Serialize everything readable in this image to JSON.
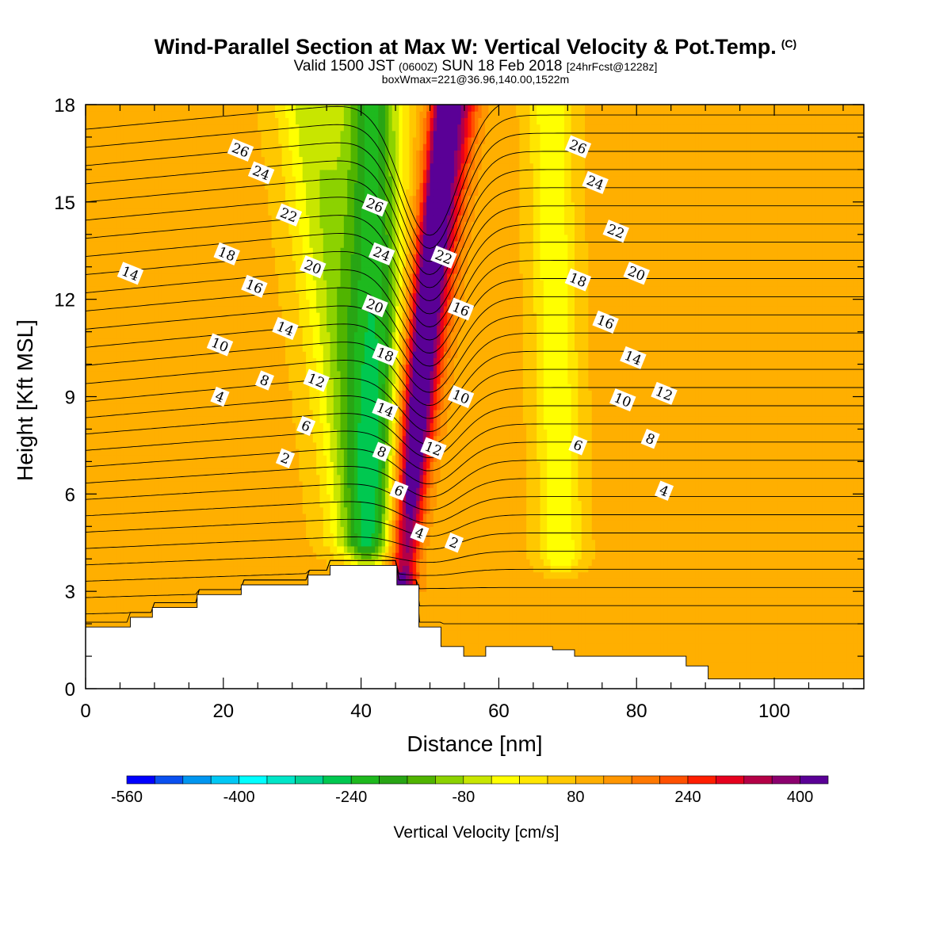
{
  "header": {
    "title": "Wind-Parallel Section at Max W: Vertical Velocity & Pot.Temp.",
    "title_mark": "(C)",
    "valid_prefix": "Valid 1500 JST",
    "valid_utc": "(0600Z)",
    "valid_date": "SUN 18 Feb 2018",
    "forecast": "[24hrFcst@1228z]",
    "boxinfo": "boxWmax=221@36.96,140.00,1522m"
  },
  "chart_data": {
    "type": "contour",
    "xlabel": "Distance [nm]",
    "ylabel": "Height [Kft MSL]",
    "xlim": [
      0,
      113
    ],
    "ylim": [
      0,
      18
    ],
    "x_ticks": [
      0,
      20,
      40,
      60,
      80,
      100
    ],
    "y_ticks": [
      0,
      3,
      6,
      9,
      12,
      15,
      18
    ],
    "colorbar": {
      "title": "Vertical Velocity [cm/s]",
      "min": -560,
      "max": 440,
      "step": 40,
      "tick_values": [
        -560,
        -400,
        -240,
        -80,
        80,
        240,
        400
      ],
      "tick_labels": [
        "-560",
        "-400",
        "-240",
        "-80",
        "80",
        "240",
        "400"
      ],
      "colors": [
        "#0000ff",
        "#0a50f0",
        "#0096f0",
        "#00c8f5",
        "#00ffff",
        "#00e6c8",
        "#00d296",
        "#00c850",
        "#1eb91e",
        "#28a514",
        "#50b400",
        "#8cd200",
        "#c8e600",
        "#ffff00",
        "#ffe600",
        "#ffc800",
        "#ffaf00",
        "#ff9600",
        "#ff7800",
        "#ff5000",
        "#ff1e00",
        "#e6001e",
        "#b40046",
        "#8c006e",
        "#5a0096"
      ]
    },
    "terrain": [
      [
        0,
        1.9
      ],
      [
        6.5,
        1.9
      ],
      [
        6.5,
        2.2
      ],
      [
        9.7,
        2.2
      ],
      [
        9.7,
        2.5
      ],
      [
        16.2,
        2.5
      ],
      [
        16.2,
        2.9
      ],
      [
        22.6,
        2.9
      ],
      [
        22.6,
        3.2
      ],
      [
        32.3,
        3.2
      ],
      [
        32.3,
        3.5
      ],
      [
        35.5,
        3.5
      ],
      [
        35.5,
        3.8
      ],
      [
        45.2,
        3.8
      ],
      [
        45.2,
        3.2
      ],
      [
        48.4,
        3.2
      ],
      [
        48.4,
        1.9
      ],
      [
        51.6,
        1.9
      ],
      [
        51.6,
        1.3
      ],
      [
        54.9,
        1.3
      ],
      [
        54.9,
        1.0
      ],
      [
        58.1,
        1.0
      ],
      [
        58.1,
        1.3
      ],
      [
        67.8,
        1.3
      ],
      [
        67.8,
        1.2
      ],
      [
        71,
        1.2
      ],
      [
        71,
        1.0
      ],
      [
        87.2,
        1.0
      ],
      [
        87.2,
        0.7
      ],
      [
        90.4,
        0.7
      ],
      [
        90.4,
        0.3
      ],
      [
        113,
        0.3
      ]
    ],
    "w_field": {
      "background": 90,
      "bands": [
        {
          "x_bottom": 44.5,
          "x_top": 53.5,
          "y_bottom": 3.2,
          "y_top": 18,
          "width": 3.2,
          "w": 420
        },
        {
          "x_bottom": 46.5,
          "x_top": 52.0,
          "y_bottom": 3.5,
          "y_top": 18,
          "width": 1.6,
          "w": 250
        },
        {
          "x_bottom": 43.0,
          "x_top": 41.5,
          "y_bottom": 3.8,
          "y_top": 18,
          "width": 4.2,
          "w": -210
        },
        {
          "x_bottom": 40.0,
          "x_top": 32.5,
          "y_bottom": 4.5,
          "y_top": 18,
          "width": 4.6,
          "w": -70
        },
        {
          "x_bottom": 69.0,
          "x_top": 67.5,
          "y_bottom": 4.0,
          "y_top": 18,
          "width": 3.0,
          "w": -40
        }
      ]
    },
    "theta_labels": [
      {
        "value": "26",
        "x": 22.5,
        "y": 16.6
      },
      {
        "value": "24",
        "x": 25.5,
        "y": 15.9
      },
      {
        "value": "22",
        "x": 29.5,
        "y": 14.6
      },
      {
        "value": "20",
        "x": 33.0,
        "y": 13.0
      },
      {
        "value": "18",
        "x": 20.5,
        "y": 13.4
      },
      {
        "value": "16",
        "x": 24.5,
        "y": 12.4
      },
      {
        "value": "14",
        "x": 6.5,
        "y": 12.8
      },
      {
        "value": "14",
        "x": 29.0,
        "y": 11.1
      },
      {
        "value": "12",
        "x": 33.5,
        "y": 9.5
      },
      {
        "value": "10",
        "x": 19.5,
        "y": 10.6
      },
      {
        "value": "8",
        "x": 26.0,
        "y": 9.5
      },
      {
        "value": "6",
        "x": 32.0,
        "y": 8.1
      },
      {
        "value": "4",
        "x": 19.5,
        "y": 9.0
      },
      {
        "value": "2",
        "x": 29.0,
        "y": 7.1
      },
      {
        "value": "26",
        "x": 42.0,
        "y": 14.9
      },
      {
        "value": "24",
        "x": 43.0,
        "y": 13.4
      },
      {
        "value": "20",
        "x": 42.0,
        "y": 11.8
      },
      {
        "value": "18",
        "x": 43.5,
        "y": 10.3
      },
      {
        "value": "14",
        "x": 43.5,
        "y": 8.6
      },
      {
        "value": "8",
        "x": 43.0,
        "y": 7.3
      },
      {
        "value": "6",
        "x": 45.5,
        "y": 6.1
      },
      {
        "value": "4",
        "x": 48.5,
        "y": 4.8
      },
      {
        "value": "22",
        "x": 52.0,
        "y": 13.3
      },
      {
        "value": "16",
        "x": 54.5,
        "y": 11.7
      },
      {
        "value": "10",
        "x": 54.5,
        "y": 9.0
      },
      {
        "value": "12",
        "x": 50.5,
        "y": 7.4
      },
      {
        "value": "2",
        "x": 53.5,
        "y": 4.5
      },
      {
        "value": "26",
        "x": 71.5,
        "y": 16.7
      },
      {
        "value": "24",
        "x": 74.0,
        "y": 15.6
      },
      {
        "value": "22",
        "x": 77.0,
        "y": 14.1
      },
      {
        "value": "20",
        "x": 80.0,
        "y": 12.8
      },
      {
        "value": "18",
        "x": 71.5,
        "y": 12.6
      },
      {
        "value": "16",
        "x": 75.5,
        "y": 11.3
      },
      {
        "value": "14",
        "x": 79.5,
        "y": 10.2
      },
      {
        "value": "12",
        "x": 84.0,
        "y": 9.1
      },
      {
        "value": "10",
        "x": 78.0,
        "y": 8.9
      },
      {
        "value": "8",
        "x": 82.0,
        "y": 7.7
      },
      {
        "value": "6",
        "x": 71.5,
        "y": 7.5
      },
      {
        "value": "4",
        "x": 84.0,
        "y": 6.1
      }
    ]
  }
}
